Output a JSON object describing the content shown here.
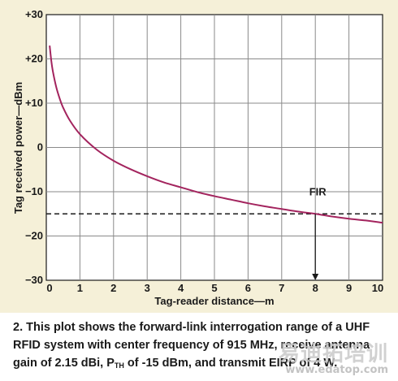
{
  "chart_data": {
    "type": "line",
    "xlabel": "Tag-reader distance—m",
    "ylabel": "Tag received power—dBm",
    "xlim": [
      0,
      10
    ],
    "ylim": [
      -30,
      30
    ],
    "xticks": [
      "0",
      "1",
      "2",
      "3",
      "4",
      "5",
      "6",
      "7",
      "8",
      "9",
      "10"
    ],
    "yticks": [
      "+30",
      "+20",
      "+10",
      "0",
      "−10",
      "−20",
      "−30"
    ],
    "grid": true,
    "series": [
      {
        "color": "#a3245e",
        "x": [
          0.1,
          0.15,
          0.2,
          0.3,
          0.4,
          0.5,
          0.7,
          1.0,
          1.5,
          2.0,
          2.5,
          3.0,
          3.5,
          4.0,
          4.5,
          5.0,
          5.5,
          6.0,
          6.5,
          7.0,
          7.5,
          8.0,
          8.5,
          9.0,
          9.5,
          10.0
        ],
        "y": [
          23,
          19.5,
          17,
          13.5,
          11,
          9,
          6.1,
          3,
          -0.5,
          -3,
          -4.9,
          -6.5,
          -7.9,
          -9,
          -10.1,
          -11,
          -11.8,
          -12.6,
          -13.3,
          -13.9,
          -14.5,
          -15,
          -15.6,
          -16.1,
          -16.5,
          -17
        ]
      }
    ],
    "threshold": {
      "y": -15,
      "style": "dashed",
      "color": "#1a1a1a"
    },
    "annotations": [
      {
        "text": "FIR",
        "x": 8,
        "y": -10.8
      }
    ],
    "arrow": {
      "x": 8,
      "from_y": -15,
      "to_y": -30
    }
  },
  "caption": {
    "prefix": "2. This plot shows the forward-link interrogation range of a UHF RFID system with center frequency of 915 MHz, receive antenna gain of 2.15 dBi, P",
    "subscript": "TH",
    "suffix": " of -15 dBm, and transmit EIRP of 4 W."
  },
  "watermark": {
    "cn": "易迪拓培训",
    "url": "www.edatop.com"
  }
}
